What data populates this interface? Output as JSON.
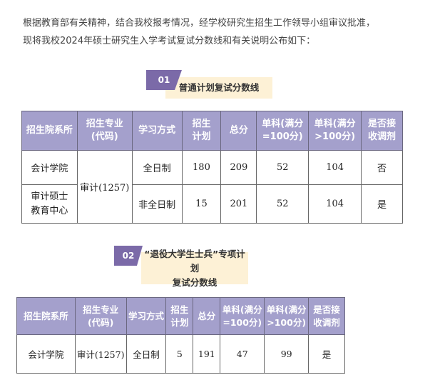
{
  "intro": [
    "根据教育部有关精神，结合我校报考情况，经学校研究生招生工作领导小组审议批准，",
    "现将我校2024年硕士研究生入学考试复试分数线和有关说明公布如下："
  ],
  "section1": {
    "badge": "01",
    "title": "普通计划复试分数线"
  },
  "section2": {
    "badge": "02",
    "title_line1": "“退役大学生士兵”专项计划",
    "title_line2": "复试分数线"
  },
  "headers": [
    [
      "招生院系所"
    ],
    [
      "招生专业",
      "(代码)"
    ],
    [
      "学习方式"
    ],
    [
      "招生",
      "计划"
    ],
    [
      "总分"
    ],
    [
      "单科(满分",
      "=100分)"
    ],
    [
      "单科(满分",
      ">100分)"
    ],
    [
      "是否接",
      "收调剂"
    ]
  ],
  "table1": {
    "rows": [
      {
        "dept": "会计学院",
        "major": "审计(1257)",
        "mode": "全日制",
        "plan": "180",
        "total": "209",
        "s100": "52",
        "s_over": "104",
        "adjust": "否"
      },
      {
        "dept_line1": "审计硕士",
        "dept_line2": "教育中心",
        "mode": "非全日制",
        "plan": "15",
        "total": "201",
        "s100": "52",
        "s_over": "104",
        "adjust": "是"
      }
    ]
  },
  "table2": {
    "rows": [
      {
        "dept": "会计学院",
        "major": "审计(1257)",
        "mode": "全日制",
        "plan": "5",
        "total": "191",
        "s100": "47",
        "s_over": "99",
        "adjust": "是"
      }
    ]
  },
  "colors": {
    "header_bg": "#a4a0cc",
    "badge": "#7b6aa8",
    "label_bg": "#fdf1d6"
  }
}
